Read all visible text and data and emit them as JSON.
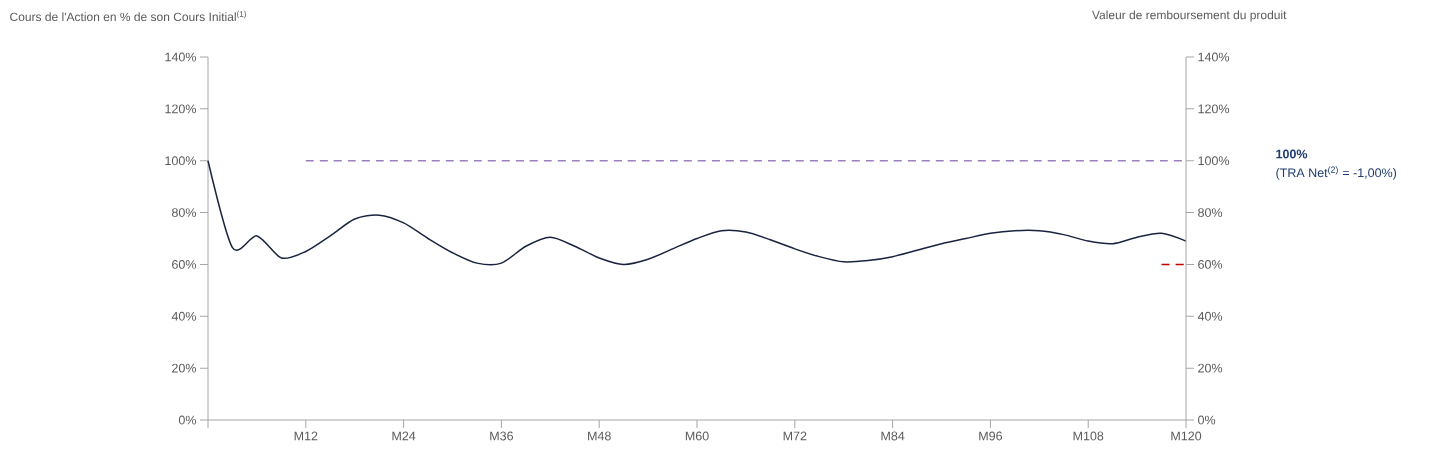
{
  "chart_data": {
    "type": "line",
    "ylabel": "Cours de l'Action en % de son Cours Initial$^{(1)}$",
    "y2label": "Valeur de remboursement du produit",
    "categories": [
      null,
      null,
      null,
      null,
      "M12",
      null,
      null,
      null,
      "M24",
      null,
      null,
      null,
      "M36",
      null,
      null,
      null,
      "M48",
      null,
      null,
      null,
      "M60",
      null,
      null,
      null,
      "M72",
      null,
      null,
      null,
      "M84",
      null,
      null,
      null,
      "M96",
      null,
      null,
      null,
      "M108",
      null,
      null,
      null,
      "M120"
    ],
    "ylim": [
      0,
      140
    ],
    "yticks": [
      {
        "value": 0,
        "label": "0%"
      },
      {
        "value": 20,
        "label": "20%"
      },
      {
        "value": 40,
        "label": "40%"
      },
      {
        "value": 60,
        "label": "60%"
      },
      {
        "value": 80,
        "label": "80%"
      },
      {
        "value": 100,
        "label": "100%"
      },
      {
        "value": 120,
        "label": "120%"
      },
      {
        "value": 140,
        "label": "140%"
      }
    ],
    "y2lim": [
      0,
      140
    ],
    "y2ticks": [
      {
        "value": 0,
        "label": "0%"
      },
      {
        "value": 20,
        "label": "20%"
      },
      {
        "value": 40,
        "label": "40%"
      },
      {
        "value": 60,
        "label": "60%"
      },
      {
        "value": 80,
        "label": "80%"
      },
      {
        "value": 100,
        "label": "100%"
      },
      {
        "value": 120,
        "label": "120%"
      },
      {
        "value": 140,
        "label": "140%"
      }
    ],
    "series": [
      {
        "color": "#1a2340",
        "line_style": "solid",
        "values": [
          100,
          66.5,
          71,
          62.5,
          65,
          71,
          77.5,
          79,
          76,
          70,
          64.5,
          60.5,
          60.5,
          67,
          70.5,
          67,
          62.5,
          60,
          62,
          66,
          70,
          73,
          72.5,
          69.5,
          66,
          63,
          61,
          61.5,
          63,
          65.5,
          68,
          70,
          72,
          73,
          73,
          71.5,
          69,
          68,
          70.5,
          72,
          69
        ]
      },
      {
        "color": "#9b7fbf",
        "line_style": "dashed",
        "values": [
          null,
          null,
          null,
          null,
          100,
          100,
          100,
          100,
          100,
          100,
          100,
          100,
          100,
          100,
          100,
          100,
          100,
          100,
          100,
          100,
          100,
          100,
          100,
          100,
          100,
          100,
          100,
          100,
          100,
          100,
          100,
          100,
          100,
          100,
          100,
          100,
          100,
          100,
          100,
          100,
          100
        ]
      },
      {
        "color": "#c00000",
        "line_style": "dashed",
        "values": [
          null,
          null,
          null,
          null,
          null,
          null,
          null,
          null,
          null,
          null,
          null,
          null,
          null,
          null,
          null,
          null,
          null,
          null,
          null,
          null,
          null,
          null,
          null,
          null,
          null,
          null,
          null,
          null,
          null,
          null,
          null,
          null,
          null,
          null,
          null,
          null,
          null,
          null,
          null,
          60,
          60
        ]
      }
    ],
    "annotations": [
      "**100%**",
      "(TRA Net$^{(2)}$ = -1,00%)"
    ]
  }
}
